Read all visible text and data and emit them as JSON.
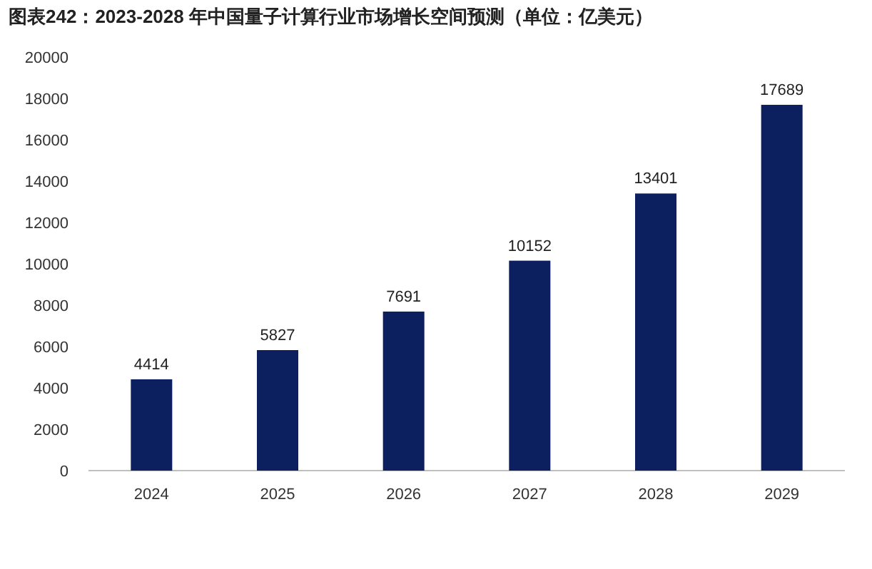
{
  "chart_data": {
    "type": "bar",
    "title": "图表242：2023-2028 年中国量子计算行业市场增长空间预测（单位：亿美元）",
    "categories": [
      "2024",
      "2025",
      "2026",
      "2027",
      "2028",
      "2029"
    ],
    "values": [
      4414,
      5827,
      7691,
      10152,
      13401,
      17689
    ],
    "color": "#0c1f5e",
    "ylim": [
      0,
      20000
    ],
    "yticks": [
      0,
      2000,
      4000,
      6000,
      8000,
      10000,
      12000,
      14000,
      16000,
      18000,
      20000
    ],
    "data_labels": true,
    "grid": false
  }
}
